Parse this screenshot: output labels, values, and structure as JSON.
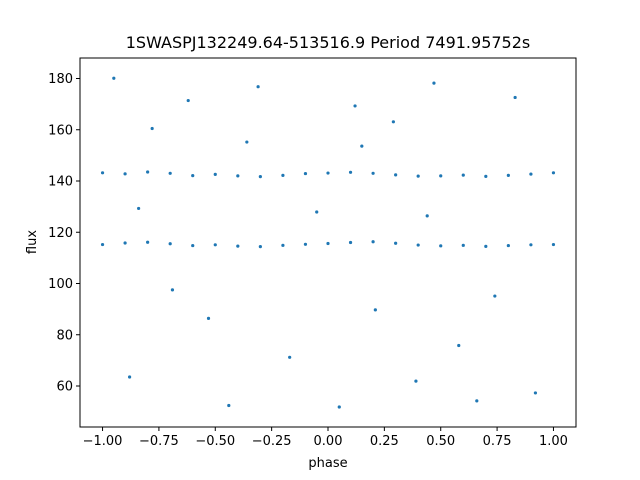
{
  "chart_data": {
    "type": "scatter",
    "title": "1SWASPJ132249.64-513516.9 Period 7491.95752s",
    "xlabel": "phase",
    "ylabel": "flux",
    "xlim": [
      -1.1,
      1.1
    ],
    "ylim": [
      44,
      188
    ],
    "xticks": [
      -1.0,
      -0.75,
      -0.5,
      -0.25,
      0.0,
      0.25,
      0.5,
      0.75,
      1.0
    ],
    "xtick_labels": [
      "−1.00",
      "−0.75",
      "−0.50",
      "−0.25",
      "0.00",
      "0.25",
      "0.50",
      "0.75",
      "1.00"
    ],
    "yticks": [
      60,
      80,
      100,
      120,
      140,
      160,
      180
    ],
    "ytick_labels": [
      "60",
      "80",
      "100",
      "120",
      "140",
      "160",
      "180"
    ],
    "grid": false,
    "marker_color": "#1f77b4",
    "series": [
      {
        "points": [
          [
            -1.0,
            143.2
          ],
          [
            -0.9,
            142.8
          ],
          [
            -0.8,
            143.5
          ],
          [
            -0.7,
            143.0
          ],
          [
            -0.6,
            142.1
          ],
          [
            -0.5,
            142.6
          ],
          [
            -0.4,
            142.0
          ],
          [
            -0.3,
            141.7
          ],
          [
            -0.2,
            142.2
          ],
          [
            -0.1,
            142.9
          ],
          [
            0.0,
            143.1
          ],
          [
            0.1,
            143.4
          ],
          [
            0.2,
            143.0
          ],
          [
            0.3,
            142.4
          ],
          [
            0.4,
            141.9
          ],
          [
            0.5,
            142.0
          ],
          [
            0.6,
            142.3
          ],
          [
            0.7,
            141.8
          ],
          [
            0.8,
            142.2
          ],
          [
            0.9,
            142.7
          ],
          [
            1.0,
            143.2
          ],
          [
            -1.0,
            115.2
          ],
          [
            -0.9,
            115.8
          ],
          [
            -0.8,
            116.1
          ],
          [
            -0.7,
            115.5
          ],
          [
            -0.6,
            114.8
          ],
          [
            -0.5,
            115.1
          ],
          [
            -0.4,
            114.6
          ],
          [
            -0.3,
            114.4
          ],
          [
            -0.2,
            114.9
          ],
          [
            -0.1,
            115.3
          ],
          [
            0.0,
            115.6
          ],
          [
            0.1,
            116.0
          ],
          [
            0.2,
            116.3
          ],
          [
            0.3,
            115.7
          ],
          [
            0.4,
            115.0
          ],
          [
            0.5,
            114.7
          ],
          [
            0.6,
            114.9
          ],
          [
            0.7,
            114.5
          ],
          [
            0.8,
            114.8
          ],
          [
            0.9,
            115.1
          ],
          [
            1.0,
            115.2
          ],
          [
            -0.95,
            180.1
          ],
          [
            -0.62,
            171.4
          ],
          [
            -0.31,
            176.8
          ],
          [
            0.12,
            169.3
          ],
          [
            0.47,
            178.2
          ],
          [
            0.83,
            172.6
          ],
          [
            -0.78,
            160.5
          ],
          [
            0.29,
            163.1
          ],
          [
            -0.44,
            52.4
          ],
          [
            0.05,
            51.8
          ],
          [
            0.66,
            54.2
          ],
          [
            -0.88,
            63.5
          ],
          [
            0.39,
            61.9
          ],
          [
            0.92,
            57.3
          ],
          [
            -0.17,
            71.2
          ],
          [
            0.58,
            75.8
          ],
          [
            -0.53,
            86.4
          ],
          [
            0.21,
            89.7
          ],
          [
            -0.69,
            97.5
          ],
          [
            0.74,
            95.1
          ],
          [
            -0.05,
            127.9
          ],
          [
            0.44,
            126.4
          ],
          [
            -0.84,
            129.3
          ],
          [
            0.15,
            153.6
          ],
          [
            -0.36,
            155.2
          ]
        ]
      }
    ]
  }
}
